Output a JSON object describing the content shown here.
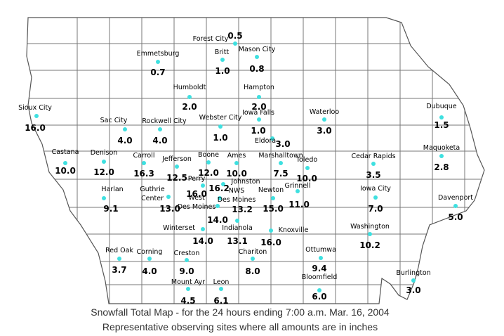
{
  "title_lines": [
    "Snowfall Total Map - for the 24 hours ending 7:00 a.m. Mar. 16, 2004",
    "Representative observing sites where all amounts are in inches"
  ],
  "stations": [
    {
      "name": [
        "Forest City"
      ],
      "amount": "0.5"
    },
    {
      "name": [
        "Britt"
      ],
      "amount": "1.0"
    },
    {
      "name": [
        "Mason City"
      ],
      "amount": "0.8"
    },
    {
      "name": [
        "Emmetsburg"
      ],
      "amount": "0.7"
    },
    {
      "name": [
        "Humboldt"
      ],
      "amount": "2.0"
    },
    {
      "name": [
        "Hampton"
      ],
      "amount": "2.0"
    },
    {
      "name": [
        "Sioux City"
      ],
      "amount": "16.0"
    },
    {
      "name": [
        "Iowa Falls"
      ],
      "amount": "1.0"
    },
    {
      "name": [
        "Webster City"
      ],
      "amount": "1.0"
    },
    {
      "name": [
        "Waterloo"
      ],
      "amount": "3.0"
    },
    {
      "name": [
        "Dubuque"
      ],
      "amount": "1.5"
    },
    {
      "name": [
        "Sac City"
      ],
      "amount": "4.0"
    },
    {
      "name": [
        "Rockwell City"
      ],
      "amount": "4.0"
    },
    {
      "name": [
        "Eldora"
      ],
      "amount": "3.0"
    },
    {
      "name": [
        "Castana"
      ],
      "amount": "10.0"
    },
    {
      "name": [
        "Denison"
      ],
      "amount": "12.0"
    },
    {
      "name": [
        "Carroll"
      ],
      "amount": "16.3"
    },
    {
      "name": [
        "Jefferson"
      ],
      "amount": "12.5"
    },
    {
      "name": [
        "Boone"
      ],
      "amount": "12.0"
    },
    {
      "name": [
        "Ames"
      ],
      "amount": "10.0"
    },
    {
      "name": [
        "Marshalltown"
      ],
      "amount": "7.5"
    },
    {
      "name": [
        "Toledo"
      ],
      "amount": "10.0"
    },
    {
      "name": [
        "Cedar Rapids"
      ],
      "amount": "3.5"
    },
    {
      "name": [
        "Maquoketa"
      ],
      "amount": "2.8"
    },
    {
      "name": [
        "Perry"
      ],
      "amount": "16.0"
    },
    {
      "name": [
        "Johnston"
      ],
      "amount": "16.2"
    },
    {
      "name": [
        "Harlan"
      ],
      "amount": "9.1"
    },
    {
      "name": [
        "Guthrie",
        "Center"
      ],
      "amount": "13.0"
    },
    {
      "name": [
        "West",
        "Des Moines"
      ],
      "amount": "14.0"
    },
    {
      "name": [
        "NWS",
        "Des Moines"
      ],
      "amount": "13.2"
    },
    {
      "name": [
        "Newton"
      ],
      "amount": "15.0"
    },
    {
      "name": [
        "Grinnell"
      ],
      "amount": "11.0"
    },
    {
      "name": [
        "Iowa City"
      ],
      "amount": "7.0"
    },
    {
      "name": [
        "Davenport"
      ],
      "amount": "5.0"
    },
    {
      "name": [
        "Winterset"
      ],
      "amount": "14.0"
    },
    {
      "name": [
        "Indianola"
      ],
      "amount": "13.1"
    },
    {
      "name": [
        "Knoxville"
      ],
      "amount": "16.0"
    },
    {
      "name": [
        "Washington"
      ],
      "amount": "10.2"
    },
    {
      "name": [
        "Red Oak"
      ],
      "amount": "3.7"
    },
    {
      "name": [
        "Corning"
      ],
      "amount": "4.0"
    },
    {
      "name": [
        "Creston"
      ],
      "amount": "9.0"
    },
    {
      "name": [
        "Chariton"
      ],
      "amount": "8.0"
    },
    {
      "name": [
        "Ottumwa"
      ],
      "amount": "9.4"
    },
    {
      "name": [
        "Burlington"
      ],
      "amount": "3.0"
    },
    {
      "name": [
        "Bloomfield"
      ],
      "amount": "6.0"
    },
    {
      "name": [
        "Mount Ayr"
      ],
      "amount": "4.5"
    },
    {
      "name": [
        "Leon"
      ],
      "amount": "6.1"
    }
  ]
}
